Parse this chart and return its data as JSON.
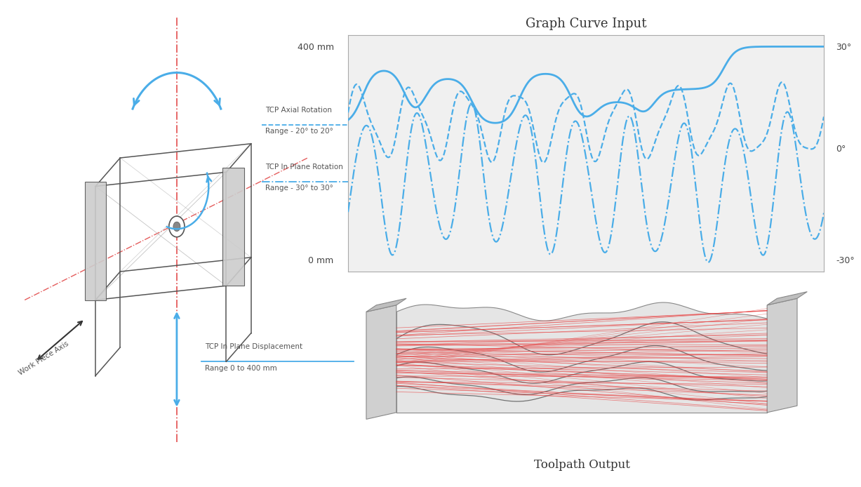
{
  "title": "Graph Curve Input",
  "subtitle": "Toolpath Output",
  "bg_color": "#FFFFFF",
  "graph_bg": "#F0F0F0",
  "curve_color": "#4AADE8",
  "left_label_1": "400 mm",
  "left_label_2": "0 mm",
  "right_label_1": "30°",
  "right_label_2": "0°",
  "right_label_3": "-30°",
  "annotation_1_title": "TCP Axial Rotation",
  "annotation_1_sub": "Range - 20° to 20°",
  "annotation_2_title": "TCP In Plane Rotation",
  "annotation_2_sub": "Range - 30° to 30°",
  "annotation_3_title": "TCP In Plane Displacement",
  "annotation_3_sub": "Range 0 to 400 mm",
  "work_piece_axis": "Work Piece Axis",
  "red_dash_color": "#E04040",
  "blue_arrow_color": "#4AADE8",
  "dark_line_color": "#555555",
  "annotation_text_color": "#555555"
}
